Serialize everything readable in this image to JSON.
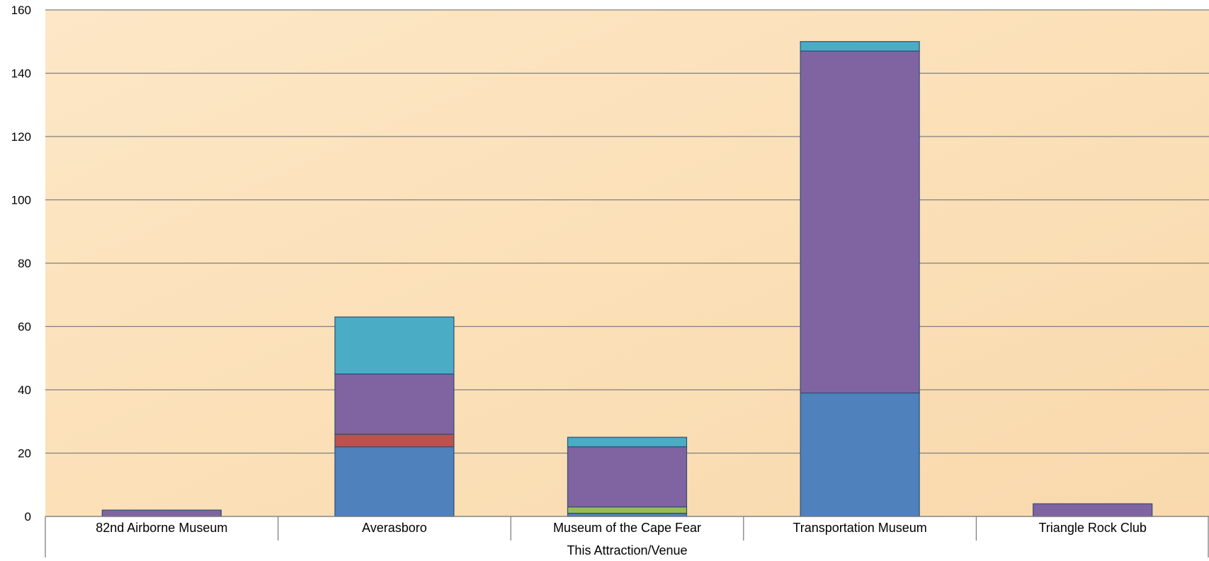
{
  "chart_data": {
    "type": "bar",
    "stacked": true,
    "categories": [
      "82nd Airborne Museum",
      "Averasboro",
      "Museum of the Cape Fear",
      "Transportation Museum",
      "Triangle Rock Club"
    ],
    "series": [
      {
        "color": "#4f81bd",
        "values": [
          0,
          22,
          1,
          39,
          0
        ]
      },
      {
        "color": "#c0504d",
        "values": [
          0,
          4,
          0,
          0,
          0
        ]
      },
      {
        "color": "#9bbb59",
        "values": [
          0,
          0,
          2,
          0,
          0
        ]
      },
      {
        "color": "#8064a2",
        "values": [
          2,
          19,
          19,
          108,
          4
        ]
      },
      {
        "color": "#4bacc6",
        "values": [
          0,
          18,
          3,
          3,
          0
        ]
      }
    ],
    "xlabel": "This Attraction/Venue",
    "ylabel": "",
    "ylim": [
      0,
      160
    ],
    "yticks": [
      0,
      20,
      40,
      60,
      80,
      100,
      120,
      140,
      160
    ],
    "grid": true,
    "legend": "none",
    "background": "#fbe2bd",
    "gridline_color": "#7f7f7f"
  }
}
